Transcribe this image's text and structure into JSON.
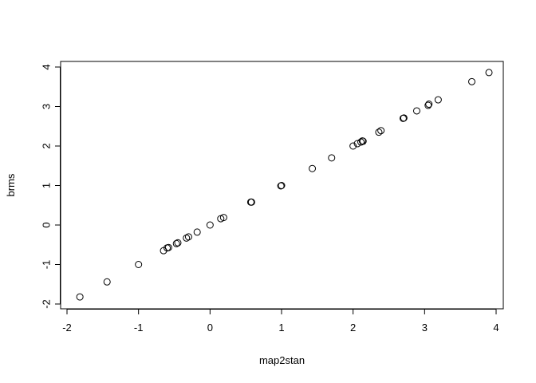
{
  "chart_data": {
    "type": "scatter",
    "title": "",
    "xlabel": "map2stan",
    "ylabel": "brms",
    "xlim": [
      -2.0,
      4.0
    ],
    "ylim": [
      -2.0,
      4.0
    ],
    "x_ticks": [
      "-2",
      "-1",
      "0",
      "1",
      "2",
      "3",
      "4"
    ],
    "y_ticks": [
      "-2",
      "-1",
      "0",
      "1",
      "2",
      "3",
      "4"
    ],
    "grid": false,
    "legend": "none",
    "marker": "open-circle",
    "points": [
      {
        "x": -1.82,
        "y": -1.82
      },
      {
        "x": -1.44,
        "y": -1.44
      },
      {
        "x": -1.0,
        "y": -1.0
      },
      {
        "x": -0.65,
        "y": -0.65
      },
      {
        "x": -0.58,
        "y": -0.57
      },
      {
        "x": -0.6,
        "y": -0.58
      },
      {
        "x": -0.47,
        "y": -0.47
      },
      {
        "x": -0.45,
        "y": -0.45
      },
      {
        "x": -0.33,
        "y": -0.33
      },
      {
        "x": -0.3,
        "y": -0.3
      },
      {
        "x": -0.18,
        "y": -0.18
      },
      {
        "x": 0.0,
        "y": 0.0
      },
      {
        "x": 0.15,
        "y": 0.16
      },
      {
        "x": 0.19,
        "y": 0.19
      },
      {
        "x": 0.57,
        "y": 0.58
      },
      {
        "x": 0.58,
        "y": 0.58
      },
      {
        "x": 0.99,
        "y": 0.99
      },
      {
        "x": 1.0,
        "y": 1.0
      },
      {
        "x": 1.43,
        "y": 1.43
      },
      {
        "x": 1.7,
        "y": 1.7
      },
      {
        "x": 2.0,
        "y": 2.0
      },
      {
        "x": 2.06,
        "y": 2.06
      },
      {
        "x": 2.11,
        "y": 2.1
      },
      {
        "x": 2.13,
        "y": 2.13
      },
      {
        "x": 2.14,
        "y": 2.12
      },
      {
        "x": 2.36,
        "y": 2.35
      },
      {
        "x": 2.39,
        "y": 2.39
      },
      {
        "x": 2.7,
        "y": 2.7
      },
      {
        "x": 2.71,
        "y": 2.71
      },
      {
        "x": 2.89,
        "y": 2.89
      },
      {
        "x": 3.05,
        "y": 3.03
      },
      {
        "x": 3.06,
        "y": 3.06
      },
      {
        "x": 3.19,
        "y": 3.17
      },
      {
        "x": 3.66,
        "y": 3.63
      },
      {
        "x": 3.9,
        "y": 3.86
      }
    ]
  }
}
